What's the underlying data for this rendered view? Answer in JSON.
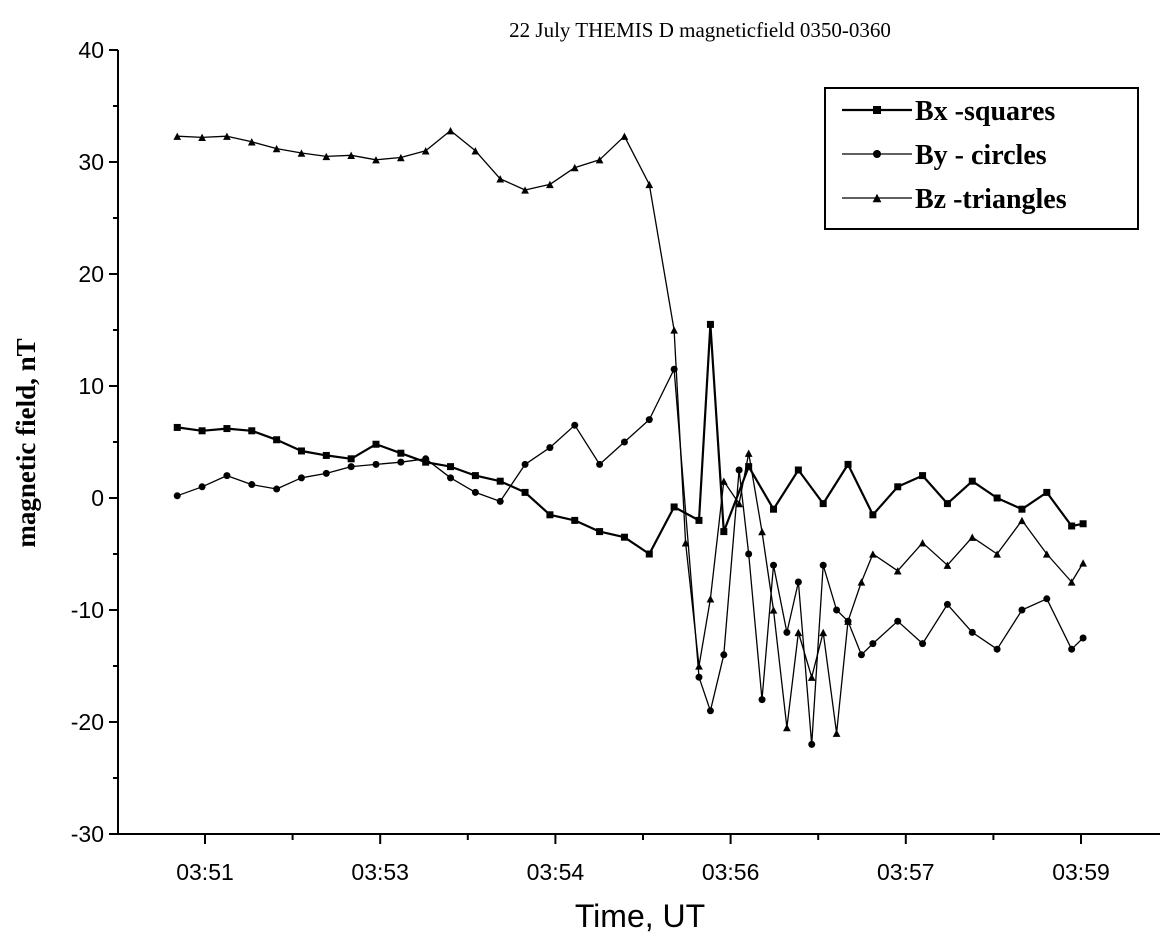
{
  "chart_data": {
    "type": "line",
    "title": "22 July THEMIS D magneticfield 0350-0360",
    "xlabel": "Time, UT",
    "ylabel": "magnetic field, nT",
    "ylim": [
      -30,
      40
    ],
    "yticks": [
      -30,
      -20,
      -10,
      0,
      10,
      20,
      30,
      40
    ],
    "xticks": [
      "03:51",
      "03:53",
      "03:54",
      "03:56",
      "03:57",
      "03:59"
    ],
    "grid": false,
    "legend_position": "top-right",
    "series": [
      {
        "name": "Bx -squares",
        "marker": "square",
        "x": [
          "03:51:06",
          "03:51:19",
          "03:51:32",
          "03:51:45",
          "03:51:58",
          "03:52:11",
          "03:52:24",
          "03:52:37",
          "03:52:50",
          "03:53:03",
          "03:53:16",
          "03:53:29",
          "03:53:42",
          "03:53:55",
          "03:54:08",
          "03:54:21",
          "03:54:34",
          "03:54:47",
          "03:55:00",
          "03:55:13",
          "03:55:26",
          "03:55:39",
          "03:55:45",
          "03:55:52",
          "03:56:05",
          "03:56:18",
          "03:56:31",
          "03:56:44",
          "03:56:57",
          "03:57:10",
          "03:57:23",
          "03:57:36",
          "03:57:49",
          "03:58:02",
          "03:58:15",
          "03:58:28",
          "03:58:41",
          "03:58:54",
          "03:59:00"
        ],
        "y": [
          6.3,
          6.0,
          6.2,
          6.0,
          5.2,
          4.2,
          3.8,
          3.5,
          4.8,
          4.0,
          3.2,
          2.8,
          2.0,
          1.5,
          0.5,
          -1.5,
          -2.0,
          -3.0,
          -3.5,
          -5.0,
          -0.8,
          -2.0,
          15.5,
          -3.0,
          2.8,
          -1.0,
          2.5,
          -0.5,
          3.0,
          -1.5,
          1.0,
          2.0,
          -0.5,
          1.5,
          0.0,
          -1.0,
          0.5,
          -2.5,
          -2.3
        ]
      },
      {
        "name": "By - circles",
        "marker": "circle",
        "x": [
          "03:51:06",
          "03:51:19",
          "03:51:32",
          "03:51:45",
          "03:51:58",
          "03:52:11",
          "03:52:24",
          "03:52:37",
          "03:52:50",
          "03:53:03",
          "03:53:16",
          "03:53:29",
          "03:53:42",
          "03:53:55",
          "03:54:08",
          "03:54:21",
          "03:54:34",
          "03:54:47",
          "03:55:00",
          "03:55:13",
          "03:55:26",
          "03:55:39",
          "03:55:45",
          "03:55:52",
          "03:56:00",
          "03:56:05",
          "03:56:12",
          "03:56:18",
          "03:56:25",
          "03:56:31",
          "03:56:38",
          "03:56:44",
          "03:56:51",
          "03:56:57",
          "03:57:04",
          "03:57:10",
          "03:57:23",
          "03:57:36",
          "03:57:49",
          "03:58:02",
          "03:58:15",
          "03:58:28",
          "03:58:41",
          "03:58:54",
          "03:59:00"
        ],
        "y": [
          0.2,
          1.0,
          2.0,
          1.2,
          0.8,
          1.8,
          2.2,
          2.8,
          3.0,
          3.2,
          3.5,
          1.8,
          0.5,
          -0.3,
          3.0,
          4.5,
          6.5,
          3.0,
          5.0,
          7.0,
          11.5,
          -16.0,
          -19.0,
          -14.0,
          2.5,
          -5.0,
          -18.0,
          -6.0,
          -12.0,
          -7.5,
          -22.0,
          -6.0,
          -10.0,
          -11.0,
          -14.0,
          -13.0,
          -11.0,
          -13.0,
          -9.5,
          -12.0,
          -13.5,
          -10.0,
          -9.0,
          -13.5,
          -12.5
        ]
      },
      {
        "name": "Bz -triangles",
        "marker": "triangle",
        "x": [
          "03:51:06",
          "03:51:19",
          "03:51:32",
          "03:51:45",
          "03:51:58",
          "03:52:11",
          "03:52:24",
          "03:52:37",
          "03:52:50",
          "03:53:03",
          "03:53:16",
          "03:53:29",
          "03:53:42",
          "03:53:55",
          "03:54:08",
          "03:54:21",
          "03:54:34",
          "03:54:47",
          "03:55:00",
          "03:55:13",
          "03:55:26",
          "03:55:32",
          "03:55:39",
          "03:55:45",
          "03:55:52",
          "03:56:00",
          "03:56:05",
          "03:56:12",
          "03:56:18",
          "03:56:25",
          "03:56:31",
          "03:56:38",
          "03:56:44",
          "03:56:51",
          "03:56:57",
          "03:57:04",
          "03:57:10",
          "03:57:23",
          "03:57:36",
          "03:57:49",
          "03:58:02",
          "03:58:15",
          "03:58:28",
          "03:58:41",
          "03:58:54",
          "03:59:00"
        ],
        "y": [
          32.3,
          32.2,
          32.3,
          31.8,
          31.2,
          30.8,
          30.5,
          30.6,
          30.2,
          30.4,
          31.0,
          32.8,
          31.0,
          28.5,
          27.5,
          28.0,
          29.5,
          30.2,
          32.3,
          28.0,
          15.0,
          -4.0,
          -15.0,
          -9.0,
          1.5,
          -0.5,
          4.0,
          -3.0,
          -10.0,
          -20.5,
          -12.0,
          -16.0,
          -12.0,
          -21.0,
          -11.0,
          -7.5,
          -5.0,
          -6.5,
          -4.0,
          -6.0,
          -3.5,
          -5.0,
          -2.0,
          -5.0,
          -7.5,
          -5.8
        ]
      }
    ]
  }
}
